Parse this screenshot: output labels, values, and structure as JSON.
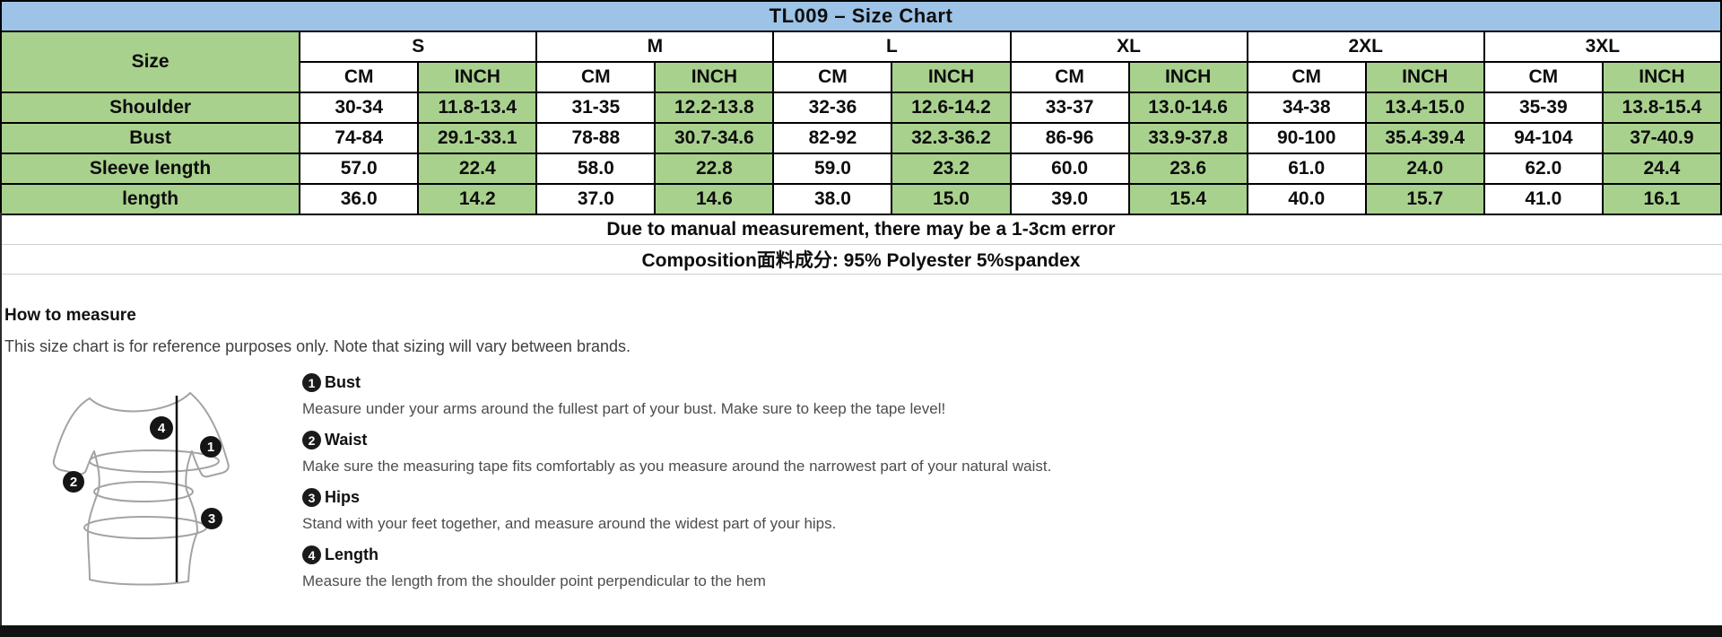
{
  "title": "TL009 – Size Chart",
  "colors": {
    "header_blue": "#9DC3E6",
    "cell_green": "#A9D18E",
    "border_black": "#000000",
    "note_line_gray": "#cfcfcf",
    "body_text_gray": "#4d4d4d",
    "bottom_bar_black": "#121212"
  },
  "size_chart": {
    "row_header": "Size",
    "unit_headers": [
      "CM",
      "INCH"
    ],
    "sizes": [
      "S",
      "M",
      "L",
      "XL",
      "2XL",
      "3XL"
    ],
    "rows": [
      {
        "label": "Shoulder",
        "values": [
          [
            "30-34",
            "11.8-13.4"
          ],
          [
            "31-35",
            "12.2-13.8"
          ],
          [
            "32-36",
            "12.6-14.2"
          ],
          [
            "33-37",
            "13.0-14.6"
          ],
          [
            "34-38",
            "13.4-15.0"
          ],
          [
            "35-39",
            "13.8-15.4"
          ]
        ]
      },
      {
        "label": "Bust",
        "values": [
          [
            "74-84",
            "29.1-33.1"
          ],
          [
            "78-88",
            "30.7-34.6"
          ],
          [
            "82-92",
            "32.3-36.2"
          ],
          [
            "86-96",
            "33.9-37.8"
          ],
          [
            "90-100",
            "35.4-39.4"
          ],
          [
            "94-104",
            "37-40.9"
          ]
        ]
      },
      {
        "label": "Sleeve length",
        "values": [
          [
            "57.0",
            "22.4"
          ],
          [
            "58.0",
            "22.8"
          ],
          [
            "59.0",
            "23.2"
          ],
          [
            "60.0",
            "23.6"
          ],
          [
            "61.0",
            "24.0"
          ],
          [
            "62.0",
            "24.4"
          ]
        ]
      },
      {
        "label": "length",
        "values": [
          [
            "36.0",
            "14.2"
          ],
          [
            "37.0",
            "14.6"
          ],
          [
            "38.0",
            "15.0"
          ],
          [
            "39.0",
            "15.4"
          ],
          [
            "40.0",
            "15.7"
          ],
          [
            "41.0",
            "16.1"
          ]
        ]
      }
    ],
    "notes": [
      "Due to manual measurement, there may be a 1-3cm error",
      "Composition面料成分: 95% Polyester 5%spandex"
    ]
  },
  "how_to_measure": {
    "heading": "How to measure",
    "intro": "This size chart is for reference purposes only. Note that sizing will vary between brands.",
    "steps": [
      {
        "num": "1",
        "label": "Bust",
        "text": "Measure under your arms around the fullest part of your bust. Make sure to keep the tape level!"
      },
      {
        "num": "2",
        "label": "Waist",
        "text": "Make sure the measuring tape fits comfortably as you measure around the narrowest part of your natural waist."
      },
      {
        "num": "3",
        "label": "Hips",
        "text": "Stand with your feet together, and measure around the widest part of your hips."
      },
      {
        "num": "4",
        "label": "Length",
        "text": "Measure the length from the shoulder point perpendicular to the hem"
      }
    ]
  }
}
